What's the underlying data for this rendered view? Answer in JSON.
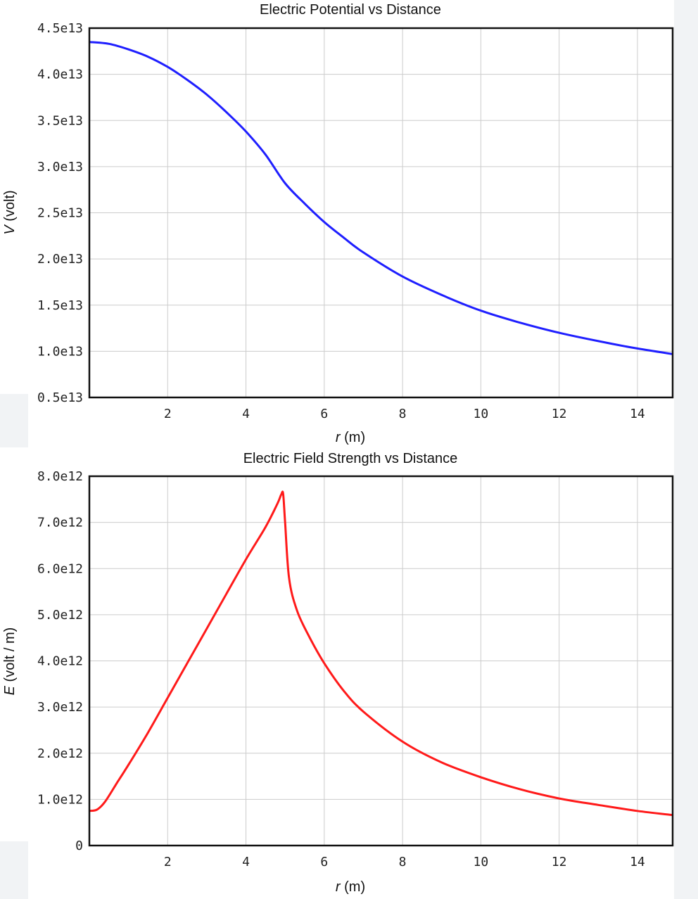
{
  "chart_data": [
    {
      "type": "line",
      "title": "Electric Potential vs Distance",
      "xlabel_var": "r",
      "xlabel_unit": " (m)",
      "ylabel_var": "V",
      "ylabel_unit": " (volt)",
      "xlim": [
        0,
        14.9
      ],
      "ylim": [
        5000000000000.0,
        45000000000000.0
      ],
      "x_ticks": [
        "2",
        "4",
        "6",
        "8",
        "10",
        "12",
        "14"
      ],
      "y_ticks": [
        "0.5e13",
        "1.0e13",
        "1.5e13",
        "2.0e13",
        "2.5e13",
        "3.0e13",
        "3.5e13",
        "4.0e13",
        "4.5e13"
      ],
      "grid": true,
      "series": [
        {
          "color": "#1f1fff",
          "x": [
            0,
            0.5,
            1,
            1.5,
            2,
            2.5,
            3,
            3.5,
            4,
            4.5,
            5,
            5.5,
            6,
            6.5,
            7,
            8,
            9,
            10,
            11,
            12,
            13,
            14,
            14.9
          ],
          "y": [
            43500000000000.0,
            43300000000000.0,
            42700000000000.0,
            41900000000000.0,
            40800000000000.0,
            39400000000000.0,
            37800000000000.0,
            35900000000000.0,
            33800000000000.0,
            31300000000000.0,
            28200000000000.0,
            26000000000000.0,
            24000000000000.0,
            22300000000000.0,
            20700000000000.0,
            18100000000000.0,
            16100000000000.0,
            14400000000000.0,
            13100000000000.0,
            12000000000000.0,
            11100000000000.0,
            10300000000000.0,
            9700000000000.0
          ]
        }
      ]
    },
    {
      "type": "line",
      "title": "Electric Field Strength vs Distance",
      "xlabel_var": "r",
      "xlabel_unit": " (m)",
      "ylabel_var": "E",
      "ylabel_unit": " (volt / m)",
      "xlim": [
        0,
        14.9
      ],
      "ylim": [
        0,
        8000000000000.0
      ],
      "x_ticks": [
        "2",
        "4",
        "6",
        "8",
        "10",
        "12",
        "14"
      ],
      "y_ticks": [
        "0",
        "1.0e12",
        "2.0e12",
        "3.0e12",
        "4.0e12",
        "5.0e12",
        "6.0e12",
        "7.0e12",
        "8.0e12"
      ],
      "grid": true,
      "series": [
        {
          "color": "#ff1a1a",
          "x": [
            0,
            0.2,
            0.4,
            0.7,
            1,
            1.5,
            2,
            2.5,
            3,
            3.5,
            4,
            4.5,
            4.8,
            4.9,
            4.95,
            5.0,
            5.1,
            5.3,
            5.6,
            6,
            6.5,
            7,
            8,
            9,
            10,
            11,
            12,
            13,
            14,
            14.9
          ],
          "y": [
            750000000000.0,
            780000000000.0,
            950000000000.0,
            1350000000000.0,
            1750000000000.0,
            2450000000000.0,
            3200000000000.0,
            3950000000000.0,
            4700000000000.0,
            5450000000000.0,
            6200000000000.0,
            6900000000000.0,
            7400000000000.0,
            7600000000000.0,
            7620000000000.0,
            7000000000000.0,
            5800000000000.0,
            5100000000000.0,
            4550000000000.0,
            3950000000000.0,
            3350000000000.0,
            2900000000000.0,
            2250000000000.0,
            1800000000000.0,
            1480000000000.0,
            1220000000000.0,
            1020000000000.0,
            880000000000.0,
            750000000000.0,
            660000000000.0
          ]
        }
      ]
    }
  ]
}
